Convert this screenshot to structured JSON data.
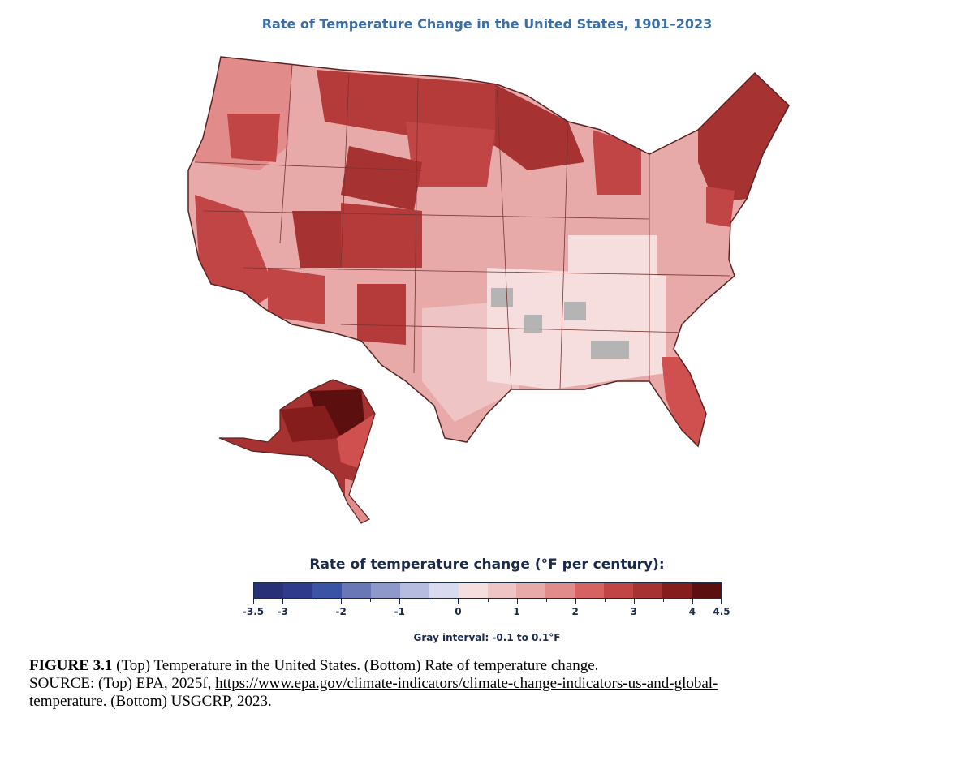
{
  "map": {
    "title": "Rate of Temperature Change in the United States, 1901–2023",
    "colors": {
      "outline": "#5a2222",
      "gray": "#b4b4b4"
    }
  },
  "legend": {
    "title": "Rate of temperature change (°F per century):",
    "gray_interval": "Gray interval: -0.1 to 0.1°F",
    "swatches": [
      "#283178",
      "#2f3a8c",
      "#3b53a4",
      "#6a77b6",
      "#8f99c9",
      "#b6bce0",
      "#d8daef",
      "#f6dede",
      "#efc4c4",
      "#e8a9a9",
      "#e18b8b",
      "#d76262",
      "#c24545",
      "#a63232",
      "#861d1d",
      "#5c0f0f"
    ],
    "ticks": [
      "-3.5",
      "-3",
      "-2",
      "-1",
      "0",
      "1",
      "2",
      "3",
      "4",
      "4.5"
    ]
  },
  "caption": {
    "figure_label": "FIGURE 3.1",
    "line1": " (Top) Temperature in the United States. (Bottom) Rate of temperature change.",
    "source_prefix": "SOURCE: (Top) EPA, 2025f, ",
    "url_part1": "https://www.epa.gov/climate-indicators/climate-change-indicators-us-and-global-",
    "url_part2": "temperature",
    "source_suffix": ". (Bottom) USGCRP, 2023."
  }
}
